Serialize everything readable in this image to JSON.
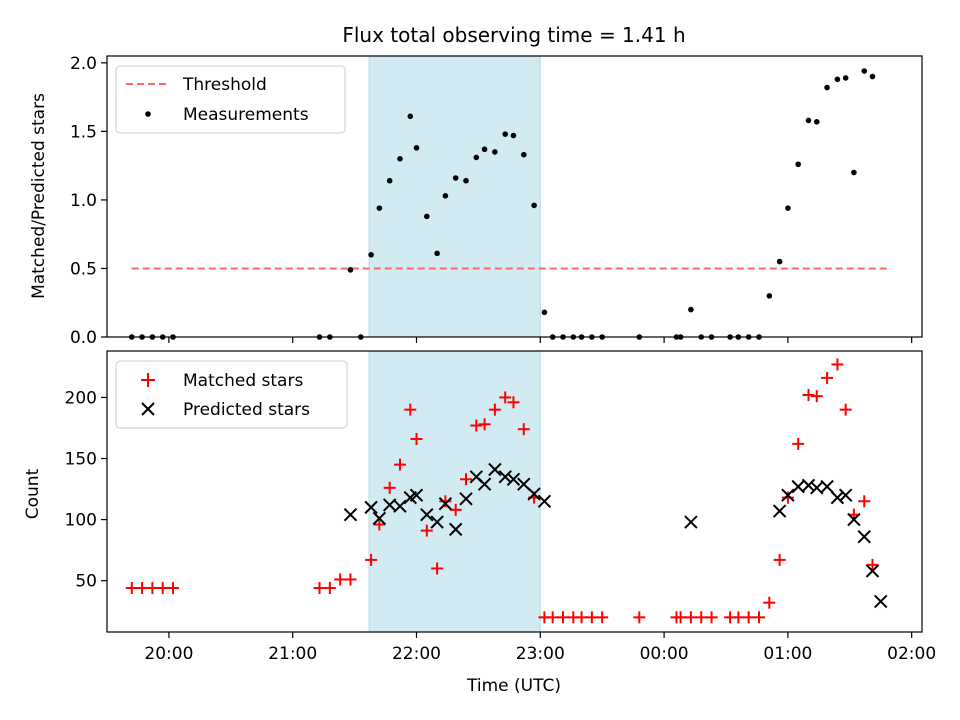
{
  "chart_data": [
    {
      "type": "scatter",
      "title": "Flux total observing time = 1.41 h",
      "xlabel": "",
      "ylabel": "Matched/Predicted stars",
      "xlim": [
        "19:30",
        "02:05"
      ],
      "ylim": [
        0,
        2.05
      ],
      "y_ticks": [
        "0.0",
        "0.5",
        "1.0",
        "1.5",
        "2.0"
      ],
      "x_ticks": [
        "20:00",
        "21:00",
        "22:00",
        "23:00",
        "00:00",
        "01:00",
        "02:00"
      ],
      "grid": false,
      "legend": "top-left",
      "shaded_band": {
        "from": "21:37",
        "to": "23:00",
        "color": "#add8e6"
      },
      "threshold": {
        "name": "Threshold",
        "value": 0.5,
        "from": "19:42",
        "to": "01:50",
        "color": "#ff6666"
      },
      "measurements": {
        "name": "Measurements",
        "color": "#000000",
        "points": [
          [
            "19:42",
            0.0
          ],
          [
            "19:47",
            0.0
          ],
          [
            "19:52",
            0.0
          ],
          [
            "19:57",
            0.0
          ],
          [
            "20:02",
            0.0
          ],
          [
            "21:13",
            0.0
          ],
          [
            "21:18",
            0.0
          ],
          [
            "21:28",
            0.49
          ],
          [
            "21:33",
            0.0
          ],
          [
            "21:38",
            0.6
          ],
          [
            "21:42",
            0.94
          ],
          [
            "21:47",
            1.14
          ],
          [
            "21:52",
            1.3
          ],
          [
            "21:57",
            1.61
          ],
          [
            "22:00",
            1.38
          ],
          [
            "22:05",
            0.88
          ],
          [
            "22:10",
            0.61
          ],
          [
            "22:14",
            1.03
          ],
          [
            "22:19",
            1.16
          ],
          [
            "22:24",
            1.14
          ],
          [
            "22:29",
            1.31
          ],
          [
            "22:33",
            1.37
          ],
          [
            "22:38",
            1.35
          ],
          [
            "22:43",
            1.48
          ],
          [
            "22:47",
            1.47
          ],
          [
            "22:52",
            1.33
          ],
          [
            "22:57",
            0.96
          ],
          [
            "23:02",
            0.18
          ],
          [
            "23:06",
            0.0
          ],
          [
            "23:11",
            0.0
          ],
          [
            "23:16",
            0.0
          ],
          [
            "23:20",
            0.0
          ],
          [
            "23:25",
            0.0
          ],
          [
            "23:30",
            0.0
          ],
          [
            "23:48",
            0.0
          ],
          [
            "00:06",
            0.0
          ],
          [
            "00:08",
            0.0
          ],
          [
            "00:13",
            0.2
          ],
          [
            "00:18",
            0.0
          ],
          [
            "00:23",
            0.0
          ],
          [
            "00:32",
            0.0
          ],
          [
            "00:36",
            0.0
          ],
          [
            "00:41",
            0.0
          ],
          [
            "00:46",
            0.0
          ],
          [
            "00:51",
            0.3
          ],
          [
            "00:56",
            0.55
          ],
          [
            "01:00",
            0.94
          ],
          [
            "01:05",
            1.26
          ],
          [
            "01:10",
            1.58
          ],
          [
            "01:14",
            1.57
          ],
          [
            "01:19",
            1.82
          ],
          [
            "01:24",
            1.88
          ],
          [
            "01:28",
            1.89
          ],
          [
            "01:32",
            1.2
          ],
          [
            "01:37",
            1.94
          ],
          [
            "01:41",
            1.9
          ]
        ]
      }
    },
    {
      "type": "scatter",
      "xlabel": "Time (UTC)",
      "ylabel": "Count",
      "xlim": [
        "19:30",
        "02:05"
      ],
      "ylim": [
        8,
        238
      ],
      "y_ticks": [
        "50",
        "100",
        "150",
        "200"
      ],
      "x_ticks": [
        "20:00",
        "21:00",
        "22:00",
        "23:00",
        "00:00",
        "01:00",
        "02:00"
      ],
      "grid": false,
      "legend": "top-left",
      "shaded_band": {
        "from": "21:37",
        "to": "23:00",
        "color": "#add8e6"
      },
      "series": [
        {
          "name": "Matched stars",
          "marker": "plus",
          "color": "#ff0000",
          "points": [
            [
              "19:42",
              44
            ],
            [
              "19:47",
              44
            ],
            [
              "19:52",
              44
            ],
            [
              "19:57",
              44
            ],
            [
              "20:02",
              44
            ],
            [
              "21:13",
              44
            ],
            [
              "21:18",
              44
            ],
            [
              "21:23",
              51
            ],
            [
              "21:28",
              51
            ],
            [
              "21:38",
              67
            ],
            [
              "21:42",
              96
            ],
            [
              "21:47",
              126
            ],
            [
              "21:52",
              145
            ],
            [
              "21:57",
              190
            ],
            [
              "22:00",
              166
            ],
            [
              "22:05",
              91
            ],
            [
              "22:10",
              60
            ],
            [
              "22:14",
              115
            ],
            [
              "22:19",
              108
            ],
            [
              "22:24",
              133
            ],
            [
              "22:29",
              177
            ],
            [
              "22:33",
              178
            ],
            [
              "22:38",
              190
            ],
            [
              "22:43",
              200
            ],
            [
              "22:47",
              196
            ],
            [
              "22:52",
              174
            ],
            [
              "22:57",
              118
            ],
            [
              "23:02",
              20
            ],
            [
              "23:06",
              20
            ],
            [
              "23:11",
              20
            ],
            [
              "23:16",
              20
            ],
            [
              "23:20",
              20
            ],
            [
              "23:25",
              20
            ],
            [
              "23:30",
              20
            ],
            [
              "23:48",
              20
            ],
            [
              "00:06",
              20
            ],
            [
              "00:08",
              20
            ],
            [
              "00:13",
              20
            ],
            [
              "00:18",
              20
            ],
            [
              "00:23",
              20
            ],
            [
              "00:32",
              20
            ],
            [
              "00:36",
              20
            ],
            [
              "00:41",
              20
            ],
            [
              "00:46",
              20
            ],
            [
              "00:51",
              32
            ],
            [
              "00:56",
              67
            ],
            [
              "01:00",
              118
            ],
            [
              "01:05",
              162
            ],
            [
              "01:10",
              202
            ],
            [
              "01:14",
              201
            ],
            [
              "01:19",
              216
            ],
            [
              "01:24",
              227
            ],
            [
              "01:28",
              190
            ],
            [
              "01:32",
              104
            ],
            [
              "01:37",
              115
            ],
            [
              "01:41",
              63
            ]
          ]
        },
        {
          "name": "Predicted stars",
          "marker": "x",
          "color": "#000000",
          "points": [
            [
              "21:28",
              104
            ],
            [
              "21:38",
              110
            ],
            [
              "21:42",
              101
            ],
            [
              "21:47",
              112
            ],
            [
              "21:52",
              111
            ],
            [
              "21:57",
              118
            ],
            [
              "22:00",
              120
            ],
            [
              "22:05",
              104
            ],
            [
              "22:10",
              98
            ],
            [
              "22:14",
              113
            ],
            [
              "22:19",
              92
            ],
            [
              "22:24",
              117
            ],
            [
              "22:29",
              135
            ],
            [
              "22:33",
              129
            ],
            [
              "22:38",
              141
            ],
            [
              "22:43",
              135
            ],
            [
              "22:47",
              133
            ],
            [
              "22:52",
              129
            ],
            [
              "22:57",
              121
            ],
            [
              "23:02",
              115
            ],
            [
              "00:13",
              98
            ],
            [
              "00:56",
              107
            ],
            [
              "01:00",
              120
            ],
            [
              "01:05",
              127
            ],
            [
              "01:10",
              128
            ],
            [
              "01:14",
              126
            ],
            [
              "01:19",
              127
            ],
            [
              "01:24",
              118
            ],
            [
              "01:28",
              120
            ],
            [
              "01:32",
              100
            ],
            [
              "01:37",
              86
            ],
            [
              "01:41",
              58
            ],
            [
              "01:45",
              33
            ]
          ]
        }
      ]
    }
  ]
}
